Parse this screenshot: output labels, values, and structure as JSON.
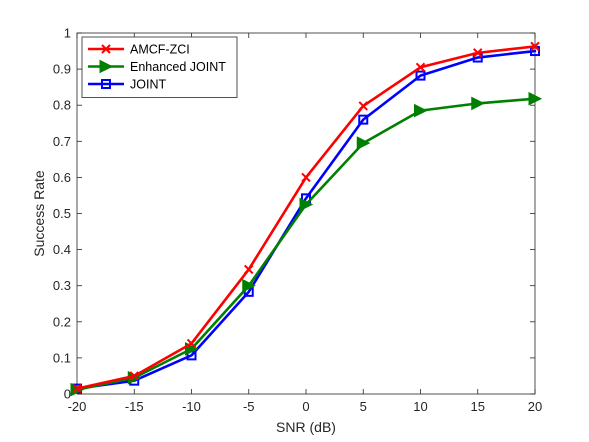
{
  "chart_data": {
    "type": "line",
    "xlabel": "SNR (dB)",
    "ylabel": "Success Rate",
    "xlim": [
      -20,
      20
    ],
    "ylim": [
      0,
      1
    ],
    "xticks": [
      -20,
      -15,
      -10,
      -5,
      0,
      5,
      10,
      15,
      20
    ],
    "yticks": [
      0,
      0.1,
      0.2,
      0.3,
      0.4,
      0.5,
      0.6,
      0.7,
      0.8,
      0.9,
      1
    ],
    "grid": false,
    "legend_position": "top-left",
    "x": [
      -20,
      -15,
      -10,
      -5,
      0,
      5,
      10,
      15,
      20
    ],
    "series": [
      {
        "name": "AMCF-ZCI",
        "color": "#ff0000",
        "marker": "x",
        "values": [
          0.015,
          0.05,
          0.14,
          0.345,
          0.6,
          0.798,
          0.905,
          0.945,
          0.963
        ]
      },
      {
        "name": "Enhanced JOINT",
        "color": "#008000",
        "marker": "triangle-right",
        "values": [
          0.012,
          0.045,
          0.125,
          0.3,
          0.525,
          0.695,
          0.785,
          0.805,
          0.818
        ]
      },
      {
        "name": "JOINT",
        "color": "#0000ff",
        "marker": "square",
        "values": [
          0.015,
          0.037,
          0.107,
          0.283,
          0.542,
          0.76,
          0.882,
          0.932,
          0.95
        ]
      }
    ]
  }
}
